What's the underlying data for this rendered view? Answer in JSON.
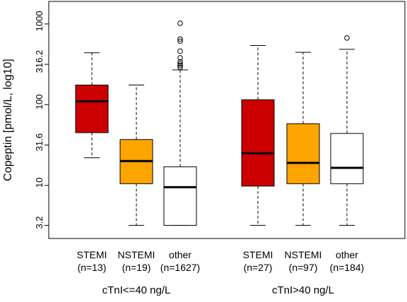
{
  "chart_data": {
    "type": "box",
    "ylabel": "Copeptin [pmol/L, log10]",
    "yscale": "log10",
    "ylim": [
      2.2,
      1900
    ],
    "y_ticks": [
      3.2,
      10,
      31.6,
      100,
      316.2,
      1000
    ],
    "y_tick_labels": [
      "3.2",
      "10",
      "31.6",
      "100",
      "316.2",
      "1000"
    ],
    "groups": [
      {
        "label": "cTnI<=40 ng/L"
      },
      {
        "label": "cTnI>40 ng/L"
      }
    ],
    "boxes": [
      {
        "category": "STEMI",
        "n_label": "(n=13)",
        "group": 0,
        "color": "#cc0000",
        "whisker_low": 22,
        "q1": 45,
        "median": 110,
        "q3": 175,
        "whisker_high": 440,
        "outliers": []
      },
      {
        "category": "NSTEMI",
        "n_label": "(n=19)",
        "group": 0,
        "color": "#ffa500",
        "whisker_low": 3.2,
        "q1": 10.5,
        "median": 20,
        "q3": 37,
        "whisker_high": 175,
        "outliers": []
      },
      {
        "category": "other",
        "n_label": "(n=1627)",
        "group": 0,
        "color": "#ffffff",
        "whisker_low": 3.2,
        "q1": 3.2,
        "median": 9.5,
        "q3": 17,
        "whisker_high": 270,
        "outliers": [
          290,
          305,
          320,
          340,
          380,
          460,
          610,
          650,
          1020
        ]
      },
      {
        "category": "STEMI",
        "n_label": "(n=27)",
        "group": 1,
        "color": "#cc0000",
        "whisker_low": 3.2,
        "q1": 9.8,
        "median": 25,
        "q3": 115,
        "whisker_high": 540,
        "outliers": []
      },
      {
        "category": "NSTEMI",
        "n_label": "(n=97)",
        "group": 1,
        "color": "#ffa500",
        "whisker_low": 3.2,
        "q1": 10.5,
        "median": 19,
        "q3": 58,
        "whisker_high": 445,
        "outliers": []
      },
      {
        "category": "other",
        "n_label": "(n=184)",
        "group": 1,
        "color": "#ffffff",
        "whisker_low": 3.2,
        "q1": 10.5,
        "median": 16.5,
        "q3": 44,
        "whisker_high": 485,
        "outliers": [
          670
        ]
      }
    ],
    "legend": "none",
    "grid": false
  }
}
